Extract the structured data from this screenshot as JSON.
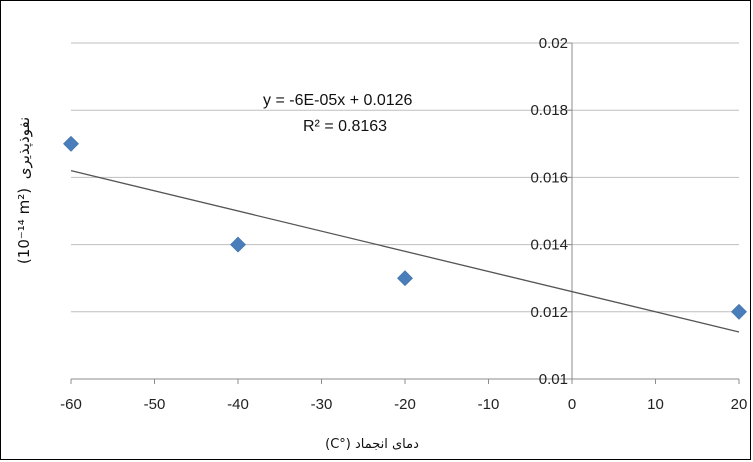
{
  "chart_data": {
    "type": "scatter",
    "x": [
      -60,
      -40,
      -20,
      20
    ],
    "y": [
      0.017,
      0.014,
      0.013,
      0.012
    ],
    "xlim": [
      -60,
      20
    ],
    "ylim": [
      0.01,
      0.02
    ],
    "x_ticks": [
      "-60",
      "-50",
      "-40",
      "-30",
      "-20",
      "-10",
      "0",
      "10",
      "20"
    ],
    "y_ticks": [
      "0.01",
      "0.012",
      "0.014",
      "0.016",
      "0.018",
      "0.02"
    ],
    "xlabel": "دمای انجماد (°C)",
    "ylabel_text": "نفوذپذیری",
    "ylabel_unit": "(10⁻¹⁴ m²)",
    "grid": true,
    "trendline": {
      "slope": -6e-05,
      "intercept": 0.0126,
      "equation": "y = -6E-05x + 0.0126",
      "r_squared": "R² = 0.8163"
    },
    "colors": {
      "marker": "#4a7ebb",
      "trendline": "#555555",
      "grid": "#bfbfbf",
      "axis": "#8c8c8c"
    }
  }
}
